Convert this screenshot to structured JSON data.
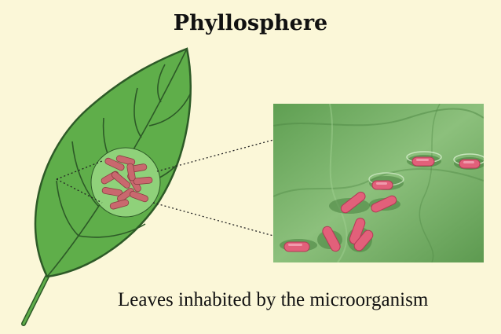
{
  "title": "Phyllosphere",
  "caption": "Leaves inhabited by the microorganism",
  "colors": {
    "background": "#fbf7d8",
    "leaf_fill": "#5fae4a",
    "leaf_outline": "#2d5a27",
    "zoom_circle": "#8fd17a",
    "bacteria": "#c9686e",
    "micrograph": "#79b06a",
    "micro_bacteria": "#e2607a"
  },
  "icons": {
    "leaf": "leaf-illustration",
    "micrograph": "electron-micrograph"
  }
}
